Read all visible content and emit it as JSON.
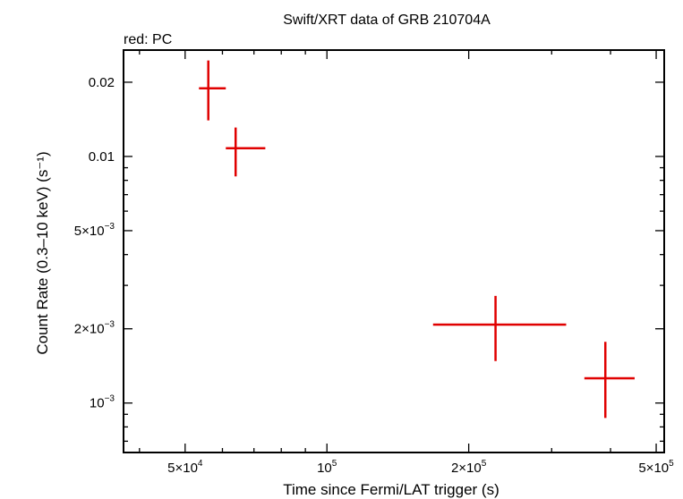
{
  "chart_data": {
    "type": "scatter",
    "title": "Swift/XRT data of GRB 210704A",
    "subtitle": "red: PC",
    "xlabel": "Time since Fermi/LAT trigger (s)",
    "ylabel": "Count Rate (0.3–10 keV) (s⁻¹)",
    "x_scale": "log",
    "y_scale": "log",
    "xlim": [
      37000,
      520000
    ],
    "ylim": [
      0.00063,
      0.027
    ],
    "x_ticks": [
      {
        "value": 50000,
        "mantissa": "5×10",
        "exp": "4"
      },
      {
        "value": 100000,
        "mantissa": "10",
        "exp": "5"
      },
      {
        "value": 200000,
        "mantissa": "2×10",
        "exp": "5"
      },
      {
        "value": 500000,
        "mantissa": "5×10",
        "exp": "5"
      }
    ],
    "y_ticks": [
      {
        "value": 0.001,
        "mantissa": "10",
        "exp": "−3"
      },
      {
        "value": 0.002,
        "mantissa": "2×10",
        "exp": "−3"
      },
      {
        "value": 0.005,
        "mantissa": "5×10",
        "exp": "−3"
      },
      {
        "value": 0.01,
        "mantissa": "0.01",
        "exp": ""
      },
      {
        "value": 0.02,
        "mantissa": "0.02",
        "exp": ""
      }
    ],
    "grid": false,
    "series": [
      {
        "color": "#e00000",
        "points": [
          {
            "x": 56000,
            "xlo": 53500,
            "xhi": 61000,
            "y": 0.0189,
            "ylo": 0.014,
            "yhi": 0.0245
          },
          {
            "x": 64000,
            "xlo": 61000,
            "xhi": 74000,
            "y": 0.0108,
            "ylo": 0.0083,
            "yhi": 0.0131
          },
          {
            "x": 228000,
            "xlo": 168000,
            "xhi": 322000,
            "y": 0.00208,
            "ylo": 0.00148,
            "yhi": 0.00272
          },
          {
            "x": 390000,
            "xlo": 352000,
            "xhi": 450000,
            "y": 0.00126,
            "ylo": 0.00087,
            "yhi": 0.00177
          }
        ]
      }
    ]
  }
}
